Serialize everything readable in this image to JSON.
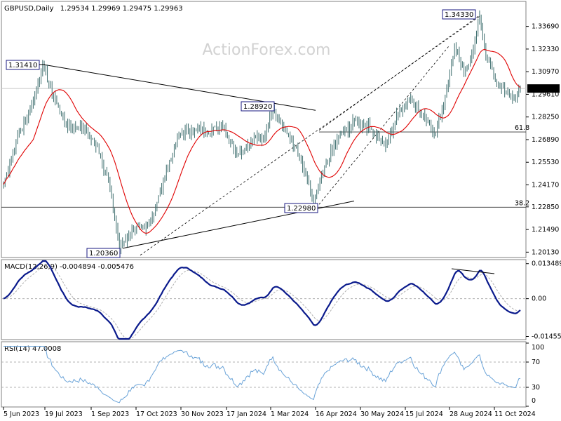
{
  "header": {
    "symbol": "GBPUSD,Daily",
    "ohlc": "1.29534 1.29969 1.29475 1.29963"
  },
  "watermark": "ActionForex.com",
  "colors": {
    "candle": "#3f6f6f",
    "ma": "#e00000",
    "macd": "#0a1a8c",
    "signal": "#b0b0b0",
    "rsi": "#6aa3d8",
    "grid": "#c8c8c8",
    "frame": "#808080"
  },
  "chart_data": [
    {
      "type": "line",
      "name": "price",
      "title": "GBPUSD,Daily",
      "x_ticks": [
        "5 Jun 2023",
        "19 Jul 2023",
        "1 Sep 2023",
        "17 Oct 2023",
        "30 Nov 2023",
        "17 Jan 2024",
        "1 Mar 2024",
        "16 Apr 2024",
        "30 May 2024",
        "15 Jul 2024",
        "28 Aug 2024",
        "11 Oct 2024"
      ],
      "y_ticks": [
        "1.33690",
        "1.32330",
        "1.30970",
        "1.29610",
        "1.28250",
        "1.26890",
        "1.25530",
        "1.24170",
        "1.22850",
        "1.21490",
        "1.20130"
      ],
      "ylim": [
        1.1985,
        1.3515
      ],
      "current_price": "1.29963",
      "price_anchors": [
        [
          0,
          1.242
        ],
        [
          8,
          1.268
        ],
        [
          18,
          1.289
        ],
        [
          25,
          1.3141
        ],
        [
          32,
          1.295
        ],
        [
          40,
          1.278
        ],
        [
          50,
          1.276
        ],
        [
          60,
          1.265
        ],
        [
          68,
          1.24
        ],
        [
          74,
          1.2036
        ],
        [
          82,
          1.215
        ],
        [
          90,
          1.215
        ],
        [
          96,
          1.225
        ],
        [
          104,
          1.25
        ],
        [
          112,
          1.272
        ],
        [
          120,
          1.275
        ],
        [
          130,
          1.274
        ],
        [
          140,
          1.277
        ],
        [
          150,
          1.26
        ],
        [
          160,
          1.27
        ],
        [
          166,
          1.268
        ],
        [
          172,
          1.2892
        ],
        [
          178,
          1.277
        ],
        [
          186,
          1.265
        ],
        [
          194,
          1.244
        ],
        [
          198,
          1.2298
        ],
        [
          206,
          1.255
        ],
        [
          214,
          1.27
        ],
        [
          224,
          1.28
        ],
        [
          234,
          1.276
        ],
        [
          244,
          1.265
        ],
        [
          252,
          1.285
        ],
        [
          260,
          1.295
        ],
        [
          266,
          1.285
        ],
        [
          272,
          1.279
        ],
        [
          276,
          1.272
        ],
        [
          282,
          1.295
        ],
        [
          288,
          1.325
        ],
        [
          294,
          1.308
        ],
        [
          300,
          1.324
        ],
        [
          304,
          1.3433
        ],
        [
          308,
          1.32
        ],
        [
          314,
          1.305
        ],
        [
          320,
          1.298
        ],
        [
          326,
          1.293
        ],
        [
          330,
          1.2996
        ]
      ],
      "ma_label": "",
      "annotations": [
        "1.31410",
        "1.28920",
        "1.34330",
        "1.22980",
        "1.20360"
      ],
      "fib_levels": [
        {
          "label": "61.8",
          "value": 1.2735
        },
        {
          "label": "38.2",
          "value": 1.2283
        }
      ],
      "ref_line": 1.2996
    },
    {
      "type": "line",
      "title": "MACD(12,26,9) -0.004894 -0.005476",
      "y_ticks": [
        "0.013489",
        "0.00",
        "-0.014554"
      ],
      "ylim": [
        -0.0155,
        0.0145
      ],
      "macd_value": -0.004894,
      "signal_value": -0.005476
    },
    {
      "type": "line",
      "title": "RSI(14) 47.0008",
      "y_ticks": [
        "100",
        "70",
        "30",
        "0"
      ],
      "ylim": [
        0,
        100
      ],
      "rsi_value": 47.0008,
      "levels": [
        70,
        30
      ]
    }
  ]
}
